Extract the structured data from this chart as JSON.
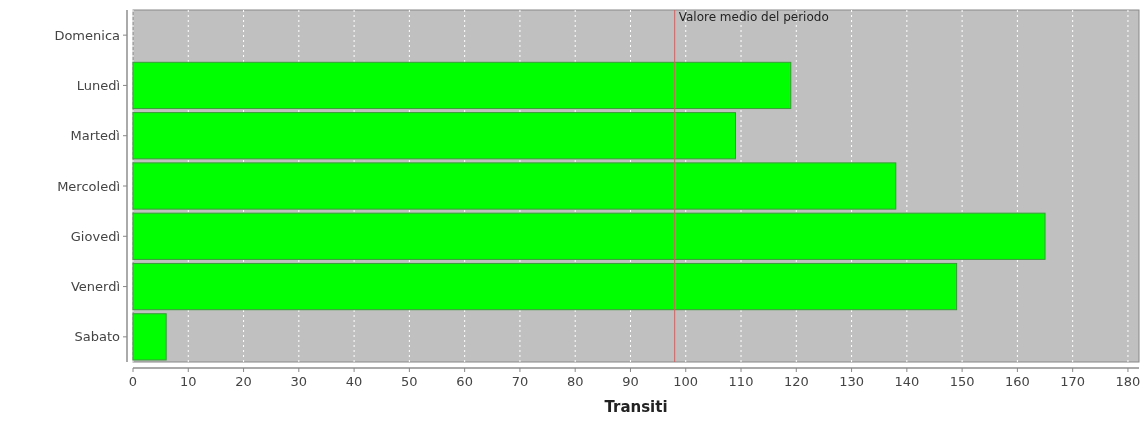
{
  "chart_data": {
    "type": "bar",
    "orientation": "horizontal",
    "xlabel": "Transiti",
    "categories": [
      "Domenica",
      "Lunedì",
      "Martedì",
      "Mercoledì",
      "Giovedì",
      "Venerdì",
      "Sabato"
    ],
    "values": [
      0,
      119,
      109,
      138,
      165,
      149,
      6
    ],
    "color": "#00ff00",
    "xlim": [
      0,
      182
    ],
    "xticks": [
      0,
      10,
      20,
      30,
      40,
      50,
      60,
      70,
      80,
      90,
      100,
      110,
      120,
      130,
      140,
      150,
      160,
      170,
      180
    ],
    "grid": "x",
    "ref_lines": [
      {
        "axis": "x",
        "value": 98,
        "label": "Valore medio del periodo",
        "color": "#d06060"
      }
    ]
  }
}
